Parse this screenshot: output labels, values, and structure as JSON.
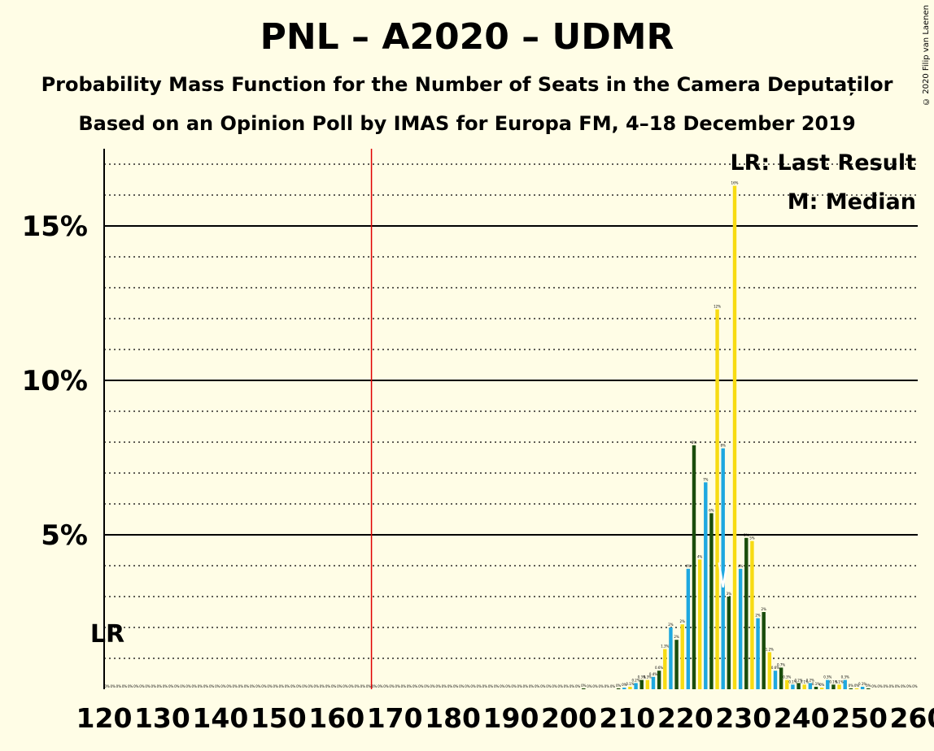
{
  "title": "PNL – A2020 – UDMR",
  "subtitle": "Probability Mass Function for the Number of Seats in the Camera Deputaților",
  "subtitle2": "Based on an Opinion Poll by IMAS for Europa FM, 4–18 December 2019",
  "copyright": "© 2020 Filip van Laenen",
  "chart_data": {
    "type": "bar",
    "xlim": [
      120,
      260
    ],
    "ylim": [
      0,
      17.5
    ],
    "x_ticks": [
      120,
      130,
      140,
      150,
      160,
      170,
      180,
      190,
      200,
      210,
      220,
      230,
      240,
      250,
      260
    ],
    "x_tick_labels": [
      "120",
      "130",
      "140",
      "150",
      "160",
      "170",
      "180",
      "190",
      "200",
      "210",
      "220",
      "230",
      "240",
      "250",
      "260"
    ],
    "y_major_ticks": [
      5,
      10,
      15
    ],
    "y_tick_labels": [
      "5%",
      "10%",
      "15%"
    ],
    "y_minor_step": 1,
    "grid": true,
    "majority_line": 166,
    "last_result": {
      "seat": 120,
      "label": "LR"
    },
    "median": {
      "seat": 226,
      "label": "M"
    },
    "legend": [
      {
        "text": "LR: Last Result",
        "position": "top-right"
      },
      {
        "text": "M: Median",
        "position": "top-right"
      }
    ],
    "colors": {
      "background": "#FFFDE6",
      "bar_blue": "#1EA8E0",
      "bar_green": "#1A4D0C",
      "bar_yellow": "#F7DB13",
      "majority_line": "#E00000",
      "grid": "#000000"
    },
    "bars": [
      {
        "x": 202,
        "v": 0.03,
        "c": "green",
        "label": "0%"
      },
      {
        "x": 208,
        "v": 0.03,
        "c": "green",
        "label": "0%"
      },
      {
        "x": 209,
        "v": 0.05,
        "c": "blue",
        "label": "0%"
      },
      {
        "x": 210,
        "v": 0.08,
        "c": "yellow",
        "label": "0.1%"
      },
      {
        "x": 211,
        "v": 0.2,
        "c": "blue",
        "label": "0.2%"
      },
      {
        "x": 212,
        "v": 0.3,
        "c": "green",
        "label": "0.3%"
      },
      {
        "x": 213,
        "v": 0.3,
        "c": "yellow",
        "label": "0.3%"
      },
      {
        "x": 214,
        "v": 0.4,
        "c": "blue",
        "label": "0.4%"
      },
      {
        "x": 215,
        "v": 0.6,
        "c": "green",
        "label": "0.6%"
      },
      {
        "x": 216,
        "v": 1.3,
        "c": "yellow",
        "label": "1.3%"
      },
      {
        "x": 217,
        "v": 2.0,
        "c": "blue",
        "label": "2%"
      },
      {
        "x": 218,
        "v": 1.6,
        "c": "green",
        "label": "2%"
      },
      {
        "x": 219,
        "v": 2.1,
        "c": "yellow",
        "label": "2%"
      },
      {
        "x": 220,
        "v": 3.9,
        "c": "blue",
        "label": "4%"
      },
      {
        "x": 221,
        "v": 7.9,
        "c": "green",
        "label": "8%"
      },
      {
        "x": 222,
        "v": 4.2,
        "c": "yellow",
        "label": "4%"
      },
      {
        "x": 223,
        "v": 6.7,
        "c": "blue",
        "label": "7%"
      },
      {
        "x": 224,
        "v": 5.7,
        "c": "green",
        "label": "6%"
      },
      {
        "x": 225,
        "v": 12.3,
        "c": "yellow",
        "label": "12%"
      },
      {
        "x": 226,
        "v": 7.8,
        "c": "blue",
        "label": "8%"
      },
      {
        "x": 227,
        "v": 3.0,
        "c": "green",
        "label": "3%"
      },
      {
        "x": 228,
        "v": 16.3,
        "c": "yellow",
        "label": "16%"
      },
      {
        "x": 229,
        "v": 3.9,
        "c": "blue",
        "label": "4%"
      },
      {
        "x": 230,
        "v": 4.9,
        "c": "green",
        "label": "5%"
      },
      {
        "x": 231,
        "v": 4.8,
        "c": "yellow",
        "label": "5%"
      },
      {
        "x": 232,
        "v": 2.3,
        "c": "blue",
        "label": "2%"
      },
      {
        "x": 233,
        "v": 2.5,
        "c": "green",
        "label": "2%"
      },
      {
        "x": 234,
        "v": 1.2,
        "c": "yellow",
        "label": "1.2%"
      },
      {
        "x": 235,
        "v": 0.6,
        "c": "blue",
        "label": "0.6%"
      },
      {
        "x": 236,
        "v": 0.7,
        "c": "green",
        "label": "0.7%"
      },
      {
        "x": 237,
        "v": 0.3,
        "c": "yellow",
        "label": "0.3%"
      },
      {
        "x": 238,
        "v": 0.15,
        "c": "blue",
        "label": "0.1%"
      },
      {
        "x": 239,
        "v": 0.2,
        "c": "green",
        "label": "0.2%"
      },
      {
        "x": 240,
        "v": 0.15,
        "c": "yellow",
        "label": "0.1%"
      },
      {
        "x": 241,
        "v": 0.2,
        "c": "blue",
        "label": "0.2%"
      },
      {
        "x": 242,
        "v": 0.08,
        "c": "green",
        "label": "0.1%"
      },
      {
        "x": 243,
        "v": 0.05,
        "c": "yellow",
        "label": "0%"
      },
      {
        "x": 244,
        "v": 0.3,
        "c": "blue",
        "label": "0.3%"
      },
      {
        "x": 245,
        "v": 0.15,
        "c": "green",
        "label": "0.1%"
      },
      {
        "x": 246,
        "v": 0.15,
        "c": "yellow",
        "label": "0.1%"
      },
      {
        "x": 247,
        "v": 0.3,
        "c": "blue",
        "label": "0.3%"
      },
      {
        "x": 248,
        "v": 0.03,
        "c": "green",
        "label": "0%"
      },
      {
        "x": 249,
        "v": 0.03,
        "c": "yellow",
        "label": "0%"
      },
      {
        "x": 250,
        "v": 0.08,
        "c": "blue",
        "label": "0.1%"
      },
      {
        "x": 251,
        "v": 0.03,
        "c": "green",
        "label": "0%"
      }
    ]
  }
}
